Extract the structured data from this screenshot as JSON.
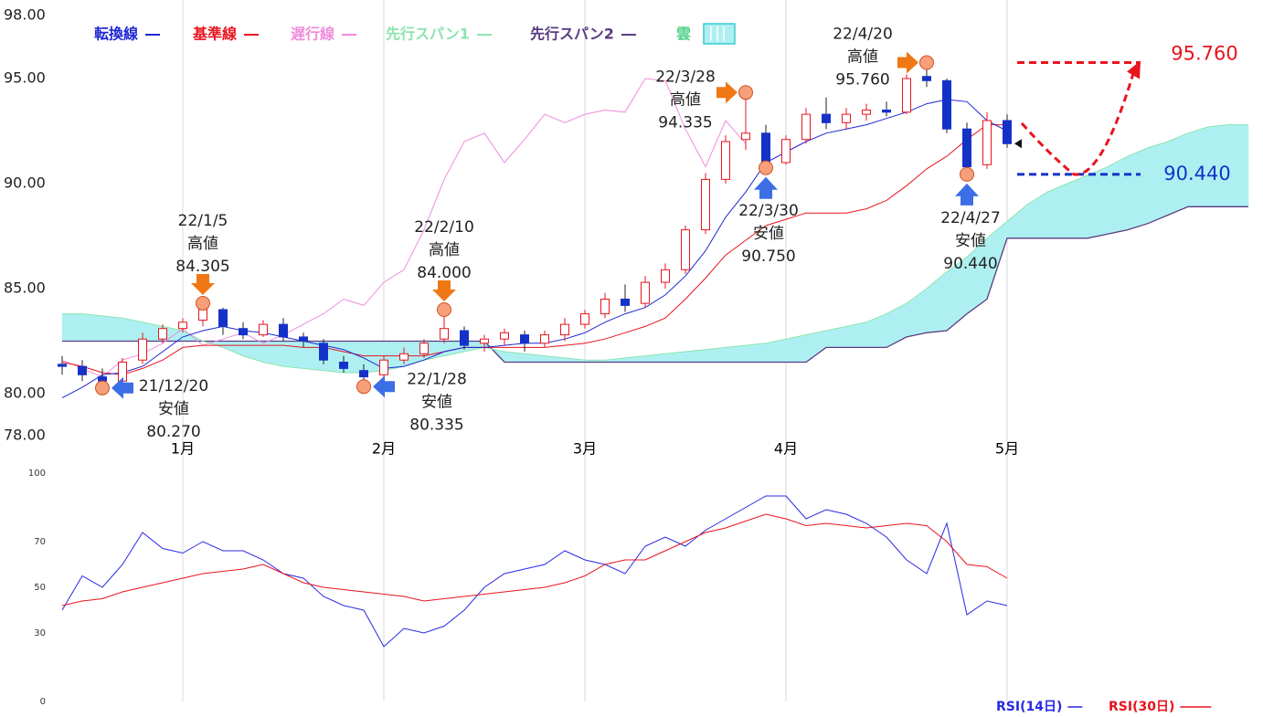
{
  "chart_data": [
    {
      "type": "candlestick",
      "categories": [
        null,
        null,
        null,
        null,
        null,
        null,
        "1月",
        null,
        null,
        null,
        null,
        null,
        null,
        null,
        null,
        null,
        "2月",
        null,
        null,
        null,
        null,
        null,
        null,
        null,
        null,
        null,
        "3月",
        null,
        null,
        null,
        null,
        null,
        null,
        null,
        null,
        null,
        "4月",
        null,
        null,
        null,
        null,
        null,
        null,
        null,
        null,
        null,
        null,
        "5月",
        null,
        null,
        null,
        null,
        null,
        null,
        null,
        null,
        null,
        null,
        null,
        null
      ],
      "open": [
        81.4,
        81.3,
        80.8,
        80.6,
        81.6,
        82.6,
        83.1,
        83.5,
        84.0,
        83.1,
        82.8,
        83.3,
        82.7,
        82.4,
        81.5,
        81.1,
        80.9,
        81.6,
        81.9,
        82.6,
        83.0,
        82.4,
        82.6,
        82.8,
        82.4,
        82.8,
        83.3,
        83.8,
        84.5,
        84.3,
        85.3,
        85.9,
        87.8,
        90.2,
        92.1,
        92.4,
        91.0,
        92.1,
        93.3,
        92.9,
        93.3,
        93.5,
        93.4,
        95.1,
        94.9,
        92.6,
        90.9,
        93.0,
        null,
        null,
        null,
        null,
        null,
        null,
        null,
        null,
        null,
        null,
        null,
        null
      ],
      "high": [
        81.8,
        81.6,
        81.2,
        81.7,
        82.9,
        83.3,
        83.6,
        84.305,
        84.1,
        83.4,
        83.5,
        83.6,
        82.9,
        82.6,
        81.8,
        81.4,
        81.8,
        82.2,
        82.6,
        84.0,
        83.2,
        82.8,
        83.1,
        83.0,
        83.0,
        83.6,
        84.0,
        84.8,
        85.2,
        85.6,
        86.2,
        88.0,
        90.5,
        92.3,
        94.335,
        92.8,
        92.3,
        93.6,
        94.1,
        93.6,
        93.8,
        93.9,
        95.2,
        95.76,
        95.0,
        92.9,
        93.4,
        93.3,
        null,
        null,
        null,
        null,
        null,
        null,
        null,
        null,
        null,
        null,
        null,
        null
      ],
      "low": [
        80.9,
        80.6,
        80.27,
        80.5,
        81.4,
        82.4,
        82.9,
        83.2,
        82.8,
        82.6,
        82.7,
        82.5,
        82.2,
        81.4,
        81.0,
        80.335,
        80.7,
        81.4,
        81.7,
        82.4,
        82.1,
        82.0,
        82.3,
        82.0,
        82.2,
        82.5,
        83.1,
        83.6,
        83.9,
        84.1,
        85.0,
        85.7,
        87.6,
        90.0,
        91.6,
        90.75,
        90.9,
        91.9,
        92.6,
        92.6,
        93.0,
        93.2,
        93.3,
        94.6,
        92.4,
        90.44,
        90.7,
        91.7,
        null,
        null,
        null,
        null,
        null,
        null,
        null,
        null,
        null,
        null,
        null,
        null
      ],
      "close": [
        81.3,
        80.9,
        80.6,
        81.5,
        82.6,
        83.1,
        83.4,
        84.0,
        83.2,
        82.8,
        83.3,
        82.7,
        82.5,
        81.6,
        81.2,
        80.8,
        81.6,
        81.9,
        82.4,
        83.1,
        82.3,
        82.6,
        82.9,
        82.4,
        82.8,
        83.3,
        83.8,
        84.5,
        84.2,
        85.3,
        85.9,
        87.8,
        90.2,
        92.0,
        92.4,
        91.0,
        92.1,
        93.3,
        92.9,
        93.3,
        93.5,
        93.4,
        95.0,
        94.9,
        92.6,
        90.8,
        93.0,
        91.9,
        null,
        null,
        null,
        null,
        null,
        null,
        null,
        null,
        null,
        null,
        null,
        null
      ],
      "up_color": "#e8141e",
      "down_color": "#1432c8",
      "series": [
        {
          "name": "転換線",
          "color": "#1e28d2",
          "values": [
            79.8,
            80.3,
            80.9,
            81.0,
            81.3,
            82.0,
            82.7,
            83.0,
            83.2,
            83.0,
            82.9,
            82.7,
            82.5,
            82.3,
            82.1,
            81.7,
            81.2,
            81.3,
            81.6,
            82.0,
            82.2,
            82.2,
            82.3,
            82.4,
            82.4,
            82.6,
            82.9,
            83.4,
            83.8,
            84.1,
            84.7,
            85.6,
            86.8,
            88.4,
            89.6,
            91.0,
            91.5,
            92.0,
            92.4,
            92.6,
            92.8,
            93.1,
            93.4,
            93.8,
            94.0,
            93.9,
            93.0,
            92.5,
            null,
            null,
            null,
            null,
            null,
            null,
            null,
            null,
            null,
            null,
            null,
            null
          ]
        },
        {
          "name": "基準線",
          "color": "#e8141e",
          "values": [
            81.5,
            81.3,
            81.0,
            80.9,
            81.2,
            81.6,
            82.2,
            82.3,
            82.3,
            82.3,
            82.3,
            82.3,
            82.2,
            82.2,
            82.0,
            81.8,
            81.8,
            81.8,
            81.8,
            82.0,
            82.2,
            82.2,
            82.2,
            82.2,
            82.2,
            82.3,
            82.4,
            82.6,
            82.9,
            83.2,
            83.6,
            84.5,
            85.5,
            86.6,
            87.3,
            88.0,
            88.3,
            88.6,
            88.6,
            88.6,
            88.8,
            89.2,
            89.9,
            90.7,
            91.3,
            92.1,
            92.8,
            92.8,
            null,
            null,
            null,
            null,
            null,
            null,
            null,
            null,
            null,
            null,
            null,
            null
          ]
        },
        {
          "name": "遅行線",
          "color": "#f08cdc",
          "values": [
            81.6,
            81.2,
            80.8,
            81.6,
            81.9,
            82.4,
            83.1,
            82.3,
            82.6,
            82.9,
            82.4,
            82.8,
            83.3,
            83.8,
            84.5,
            84.2,
            85.3,
            85.9,
            87.8,
            90.2,
            92.0,
            92.4,
            91.0,
            92.1,
            93.3,
            92.9,
            93.3,
            93.5,
            93.4,
            95.0,
            94.9,
            92.6,
            90.8,
            93.0,
            91.9,
            null,
            null,
            null,
            null,
            null,
            null,
            null,
            null,
            null,
            null,
            null,
            null,
            null,
            null,
            null,
            null,
            null,
            null,
            null,
            null,
            null,
            null,
            null,
            null,
            null
          ]
        },
        {
          "name": "先行スパン1",
          "color": "#8ee4b0",
          "values": [
            83.8,
            83.8,
            83.7,
            83.6,
            83.4,
            83.2,
            83.0,
            82.5,
            82.2,
            81.8,
            81.5,
            81.3,
            81.2,
            81.1,
            81.0,
            81.0,
            81.1,
            81.3,
            81.6,
            81.8,
            82.0,
            82.2,
            82.0,
            81.9,
            81.8,
            81.7,
            81.6,
            81.6,
            81.7,
            81.8,
            81.9,
            82.0,
            82.1,
            82.2,
            82.3,
            82.4,
            82.6,
            82.8,
            83.0,
            83.2,
            83.4,
            83.8,
            84.3,
            85.0,
            85.8,
            86.5,
            87.4,
            88.2,
            89.0,
            89.6,
            90.0,
            90.4,
            90.8,
            91.3,
            91.7,
            92.0,
            92.4,
            92.7,
            92.8,
            92.8
          ]
        },
        {
          "name": "先行スパン2",
          "color": "#5a3c82",
          "values": [
            82.5,
            82.5,
            82.5,
            82.5,
            82.5,
            82.5,
            82.5,
            82.5,
            82.5,
            82.5,
            82.5,
            82.5,
            82.5,
            82.5,
            82.5,
            82.5,
            82.5,
            82.5,
            82.5,
            82.5,
            82.5,
            82.5,
            81.5,
            81.5,
            81.5,
            81.5,
            81.5,
            81.5,
            81.5,
            81.5,
            81.5,
            81.5,
            81.5,
            81.5,
            81.5,
            81.5,
            81.5,
            81.5,
            82.2,
            82.2,
            82.2,
            82.2,
            82.7,
            82.9,
            83.0,
            83.8,
            84.5,
            87.4,
            87.4,
            87.4,
            87.4,
            87.4,
            87.6,
            87.8,
            88.1,
            88.5,
            88.9,
            88.9,
            88.9,
            88.9
          ]
        }
      ],
      "cloud": {
        "name": "雲",
        "color": "#aef0f2"
      },
      "ylim": [
        78,
        98
      ],
      "yticks": [
        {
          "value": 78,
          "label": "78.00"
        },
        {
          "value": 80,
          "label": "80.00"
        },
        {
          "value": 85,
          "label": "85.00"
        },
        {
          "value": 90,
          "label": "90.00"
        },
        {
          "value": 95,
          "label": "95.00"
        },
        {
          "value": 98,
          "label": "98.00"
        }
      ],
      "annotations": [
        {
          "date": "21/12/20",
          "kind": "安値",
          "price": 80.27,
          "price_label": "80.270"
        },
        {
          "date": "22/1/5",
          "kind": "高値",
          "price": 84.305,
          "price_label": "84.305"
        },
        {
          "date": "22/1/28",
          "kind": "安値",
          "price": 80.335,
          "price_label": "80.335"
        },
        {
          "date": "22/2/10",
          "kind": "高値",
          "price": 84.0,
          "price_label": "84.000"
        },
        {
          "date": "22/3/28",
          "kind": "高値",
          "price": 94.335,
          "price_label": "94.335"
        },
        {
          "date": "22/3/30",
          "kind": "安値",
          "price": 90.75,
          "price_label": "90.750"
        },
        {
          "date": "22/4/20",
          "kind": "高値",
          "price": 95.76,
          "price_label": "95.760"
        },
        {
          "date": "22/4/27",
          "kind": "安値",
          "price": 90.44,
          "price_label": "90.440"
        }
      ],
      "targets": [
        {
          "value": 95.76,
          "label": "95.760",
          "color": "#e8141e"
        },
        {
          "value": 90.44,
          "label": "90.440",
          "color": "#1432c8"
        }
      ]
    },
    {
      "type": "line",
      "series": [
        {
          "name": "RSI(14日)",
          "color": "#2828e6",
          "values": [
            40,
            55,
            50,
            60,
            74,
            67,
            65,
            70,
            66,
            66,
            62,
            56,
            54,
            46,
            42,
            40,
            24,
            32,
            30,
            33,
            40,
            50,
            56,
            58,
            60,
            66,
            62,
            60,
            56,
            68,
            72,
            68,
            75,
            80,
            85,
            90,
            90,
            80,
            84,
            82,
            78,
            72,
            62,
            56,
            78,
            38,
            44,
            42
          ]
        },
        {
          "name": "RSI(30日)",
          "color": "#e8141e",
          "values": [
            42,
            44,
            45,
            48,
            50,
            52,
            54,
            56,
            57,
            58,
            60,
            56,
            52,
            50,
            49,
            48,
            47,
            46,
            44,
            45,
            46,
            47,
            48,
            49,
            50,
            52,
            55,
            60,
            62,
            62,
            66,
            70,
            74,
            76,
            79,
            82,
            80,
            77,
            78,
            77,
            76,
            77,
            78,
            77,
            70,
            60,
            59,
            54
          ]
        }
      ],
      "ylim": [
        0,
        100
      ],
      "yticks": [
        0,
        30,
        50,
        70,
        100
      ]
    }
  ]
}
